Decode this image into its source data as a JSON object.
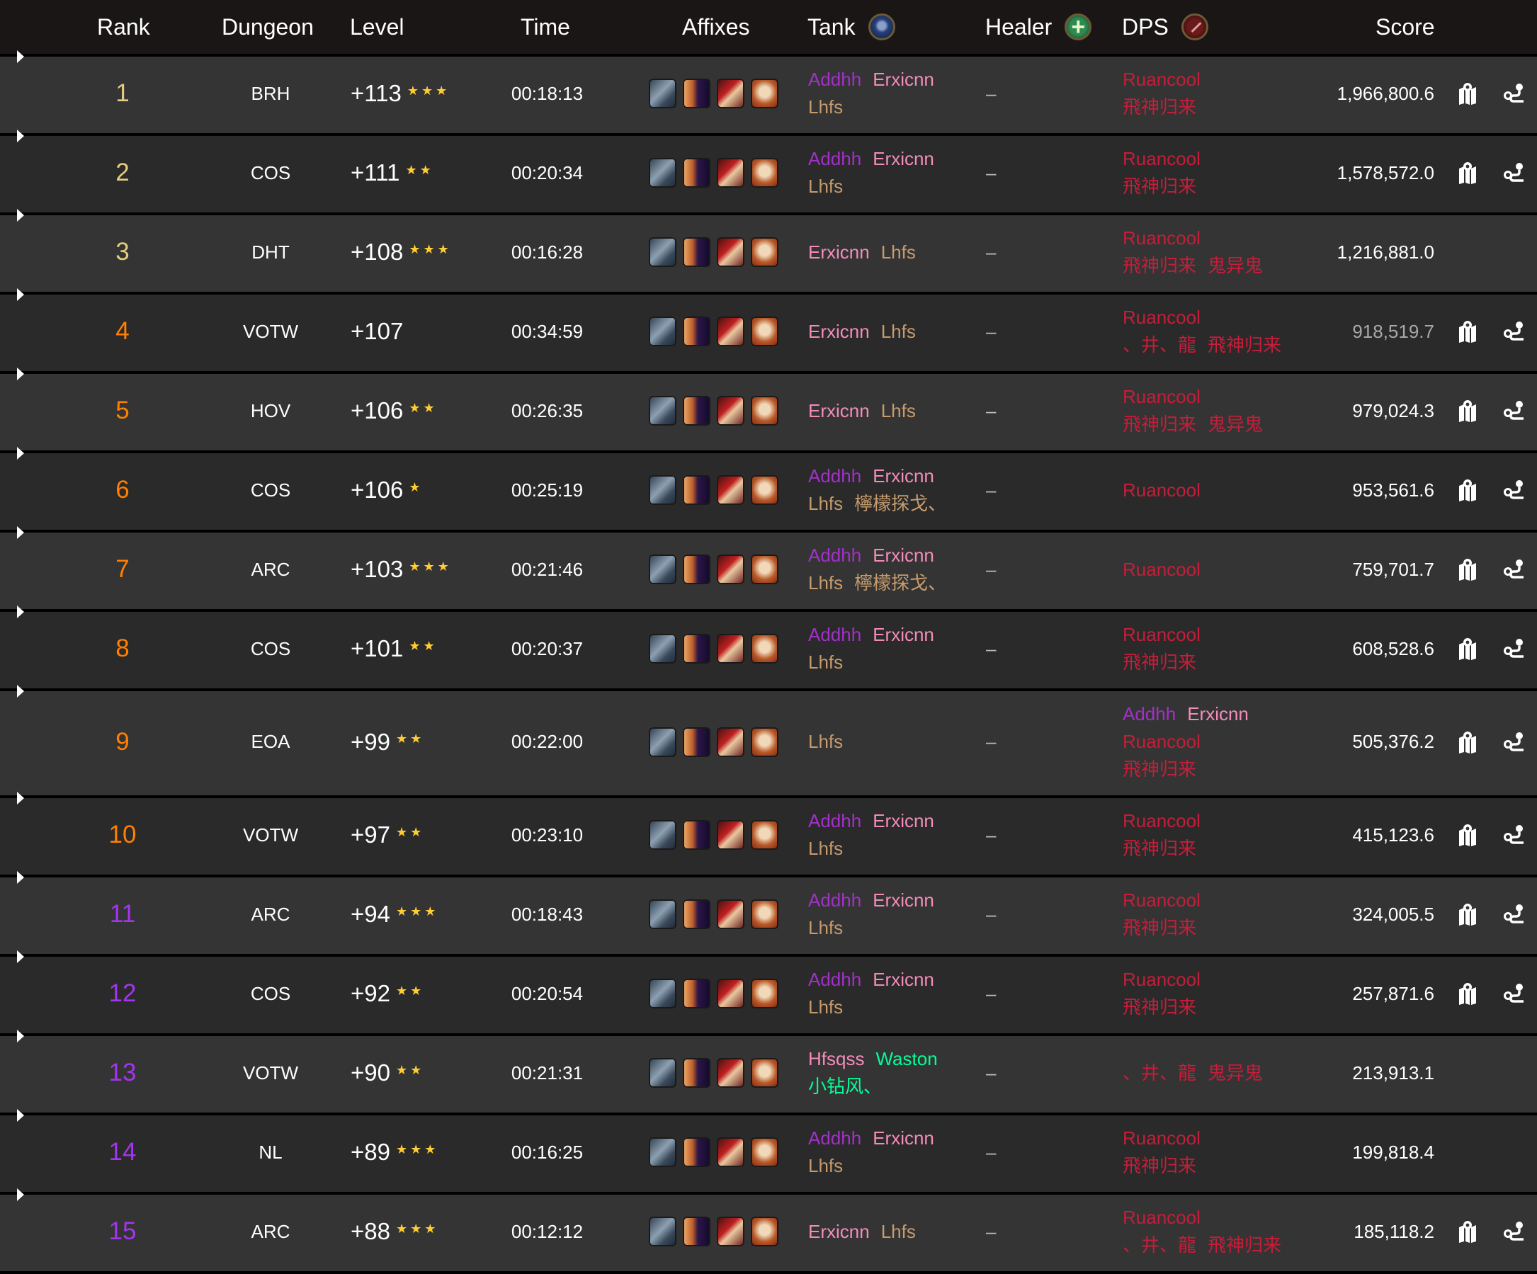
{
  "header": {
    "rank": "Rank",
    "dungeon": "Dungeon",
    "level": "Level",
    "time": "Time",
    "affixes": "Affixes",
    "tank": "Tank",
    "healer": "Healer",
    "dps": "DPS",
    "score": "Score",
    "tank_icon": "shield-icon",
    "healer_icon": "plus-icon",
    "dps_icon": "sword-icon"
  },
  "colors": {
    "rank_gold": "#e5cc80",
    "rank_orange": "#ff8000",
    "rank_purple": "#a335ee",
    "star": "#ffcc33",
    "row_odd": "#343434",
    "row_even": "#2a2a2a",
    "header_bg": "#191615"
  },
  "class_colors": {
    "demon_hunter": "#a330c9",
    "paladin": "#f48cba",
    "warrior": "#c69b6d",
    "death_knight": "#c41e3a",
    "monk": "#00ff98"
  },
  "affix_icons": [
    "tyrannical-icon",
    "bursting-icon",
    "bolstering-icon",
    "skull-affix-icon"
  ],
  "healer_empty": "–",
  "rows": [
    {
      "rank": "1",
      "tier": "gold",
      "dungeon": "BRH",
      "level": "+113",
      "stars": 3,
      "time": "00:18:13",
      "tank": [
        [
          [
            "Addhh",
            "demon_hunter"
          ],
          [
            "Erxicnn",
            "paladin"
          ]
        ],
        [
          [
            "Lhfs",
            "warrior"
          ]
        ]
      ],
      "dps": [
        [
          [
            "Ruancool",
            "death_knight"
          ]
        ],
        [
          [
            "飛神归来",
            "death_knight"
          ]
        ]
      ],
      "score": "1,966,800.6",
      "actions": true
    },
    {
      "rank": "2",
      "tier": "gold",
      "dungeon": "COS",
      "level": "+111",
      "stars": 2,
      "time": "00:20:34",
      "tank": [
        [
          [
            "Addhh",
            "demon_hunter"
          ],
          [
            "Erxicnn",
            "paladin"
          ]
        ],
        [
          [
            "Lhfs",
            "warrior"
          ]
        ]
      ],
      "dps": [
        [
          [
            "Ruancool",
            "death_knight"
          ]
        ],
        [
          [
            "飛神归来",
            "death_knight"
          ]
        ]
      ],
      "score": "1,578,572.0",
      "actions": true
    },
    {
      "rank": "3",
      "tier": "gold",
      "dungeon": "DHT",
      "level": "+108",
      "stars": 3,
      "time": "00:16:28",
      "tank": [
        [
          [
            "Erxicnn",
            "paladin"
          ],
          [
            "Lhfs",
            "warrior"
          ]
        ]
      ],
      "dps": [
        [
          [
            "Ruancool",
            "death_knight"
          ]
        ],
        [
          [
            "飛神归来",
            "death_knight"
          ],
          [
            "鬼异鬼",
            "death_knight"
          ]
        ]
      ],
      "score": "1,216,881.0",
      "actions": false
    },
    {
      "rank": "4",
      "tier": "orange",
      "dungeon": "VOTW",
      "level": "+107",
      "stars": 0,
      "time": "00:34:59",
      "tank": [
        [
          [
            "Erxicnn",
            "paladin"
          ],
          [
            "Lhfs",
            "warrior"
          ]
        ]
      ],
      "dps": [
        [
          [
            "Ruancool",
            "death_knight"
          ]
        ],
        [
          [
            "、井、龍",
            "death_knight"
          ],
          [
            "飛神归来",
            "death_knight"
          ]
        ]
      ],
      "score": "918,519.7",
      "score_muted": true,
      "actions": true
    },
    {
      "rank": "5",
      "tier": "orange",
      "dungeon": "HOV",
      "level": "+106",
      "stars": 2,
      "time": "00:26:35",
      "tank": [
        [
          [
            "Erxicnn",
            "paladin"
          ],
          [
            "Lhfs",
            "warrior"
          ]
        ]
      ],
      "dps": [
        [
          [
            "Ruancool",
            "death_knight"
          ]
        ],
        [
          [
            "飛神归来",
            "death_knight"
          ],
          [
            "鬼异鬼",
            "death_knight"
          ]
        ]
      ],
      "score": "979,024.3",
      "actions": true
    },
    {
      "rank": "6",
      "tier": "orange",
      "dungeon": "COS",
      "level": "+106",
      "stars": 1,
      "time": "00:25:19",
      "tank": [
        [
          [
            "Addhh",
            "demon_hunter"
          ],
          [
            "Erxicnn",
            "paladin"
          ]
        ],
        [
          [
            "Lhfs",
            "warrior"
          ],
          [
            "檸檬探戈、",
            "warrior"
          ]
        ]
      ],
      "dps": [
        [
          [
            "Ruancool",
            "death_knight"
          ]
        ]
      ],
      "score": "953,561.6",
      "actions": true
    },
    {
      "rank": "7",
      "tier": "orange",
      "dungeon": "ARC",
      "level": "+103",
      "stars": 3,
      "time": "00:21:46",
      "tank": [
        [
          [
            "Addhh",
            "demon_hunter"
          ],
          [
            "Erxicnn",
            "paladin"
          ]
        ],
        [
          [
            "Lhfs",
            "warrior"
          ],
          [
            "檸檬探戈、",
            "warrior"
          ]
        ]
      ],
      "dps": [
        [
          [
            "Ruancool",
            "death_knight"
          ]
        ]
      ],
      "score": "759,701.7",
      "actions": true
    },
    {
      "rank": "8",
      "tier": "orange",
      "dungeon": "COS",
      "level": "+101",
      "stars": 2,
      "time": "00:20:37",
      "tank": [
        [
          [
            "Addhh",
            "demon_hunter"
          ],
          [
            "Erxicnn",
            "paladin"
          ]
        ],
        [
          [
            "Lhfs",
            "warrior"
          ]
        ]
      ],
      "dps": [
        [
          [
            "Ruancool",
            "death_knight"
          ]
        ],
        [
          [
            "飛神归来",
            "death_knight"
          ]
        ]
      ],
      "score": "608,528.6",
      "actions": true
    },
    {
      "rank": "9",
      "tier": "orange",
      "dungeon": "EOA",
      "level": "+99",
      "stars": 2,
      "time": "00:22:00",
      "tank": [
        [
          [
            "Lhfs",
            "warrior"
          ]
        ]
      ],
      "dps": [
        [
          [
            "Addhh",
            "demon_hunter"
          ],
          [
            "Erxicnn",
            "paladin"
          ]
        ],
        [
          [
            "Ruancool",
            "death_knight"
          ]
        ],
        [
          [
            "飛神归来",
            "death_knight"
          ]
        ]
      ],
      "score": "505,376.2",
      "actions": true
    },
    {
      "rank": "10",
      "tier": "orange",
      "dungeon": "VOTW",
      "level": "+97",
      "stars": 2,
      "time": "00:23:10",
      "tank": [
        [
          [
            "Addhh",
            "demon_hunter"
          ],
          [
            "Erxicnn",
            "paladin"
          ]
        ],
        [
          [
            "Lhfs",
            "warrior"
          ]
        ]
      ],
      "dps": [
        [
          [
            "Ruancool",
            "death_knight"
          ]
        ],
        [
          [
            "飛神归来",
            "death_knight"
          ]
        ]
      ],
      "score": "415,123.6",
      "actions": true
    },
    {
      "rank": "11",
      "tier": "purple",
      "dungeon": "ARC",
      "level": "+94",
      "stars": 3,
      "time": "00:18:43",
      "tank": [
        [
          [
            "Addhh",
            "demon_hunter"
          ],
          [
            "Erxicnn",
            "paladin"
          ]
        ],
        [
          [
            "Lhfs",
            "warrior"
          ]
        ]
      ],
      "dps": [
        [
          [
            "Ruancool",
            "death_knight"
          ]
        ],
        [
          [
            "飛神归来",
            "death_knight"
          ]
        ]
      ],
      "score": "324,005.5",
      "actions": true
    },
    {
      "rank": "12",
      "tier": "purple",
      "dungeon": "COS",
      "level": "+92",
      "stars": 2,
      "time": "00:20:54",
      "tank": [
        [
          [
            "Addhh",
            "demon_hunter"
          ],
          [
            "Erxicnn",
            "paladin"
          ]
        ],
        [
          [
            "Lhfs",
            "warrior"
          ]
        ]
      ],
      "dps": [
        [
          [
            "Ruancool",
            "death_knight"
          ]
        ],
        [
          [
            "飛神归来",
            "death_knight"
          ]
        ]
      ],
      "score": "257,871.6",
      "actions": true
    },
    {
      "rank": "13",
      "tier": "purple",
      "dungeon": "VOTW",
      "level": "+90",
      "stars": 2,
      "time": "00:21:31",
      "tank": [
        [
          [
            "Hfsqss",
            "paladin"
          ],
          [
            "Waston",
            "monk"
          ]
        ],
        [
          [
            "小钻风、",
            "monk"
          ]
        ]
      ],
      "dps": [
        [
          [
            "、井、龍",
            "death_knight"
          ],
          [
            "鬼异鬼",
            "death_knight"
          ]
        ]
      ],
      "score": "213,913.1",
      "actions": false
    },
    {
      "rank": "14",
      "tier": "purple",
      "dungeon": "NL",
      "level": "+89",
      "stars": 3,
      "time": "00:16:25",
      "tank": [
        [
          [
            "Addhh",
            "demon_hunter"
          ],
          [
            "Erxicnn",
            "paladin"
          ]
        ],
        [
          [
            "Lhfs",
            "warrior"
          ]
        ]
      ],
      "dps": [
        [
          [
            "Ruancool",
            "death_knight"
          ]
        ],
        [
          [
            "飛神归来",
            "death_knight"
          ]
        ]
      ],
      "score": "199,818.4",
      "actions": false
    },
    {
      "rank": "15",
      "tier": "purple",
      "dungeon": "ARC",
      "level": "+88",
      "stars": 3,
      "time": "00:12:12",
      "tank": [
        [
          [
            "Erxicnn",
            "paladin"
          ],
          [
            "Lhfs",
            "warrior"
          ]
        ]
      ],
      "dps": [
        [
          [
            "Ruancool",
            "death_knight"
          ]
        ],
        [
          [
            "、井、龍",
            "death_knight"
          ],
          [
            "飛神归来",
            "death_knight"
          ]
        ]
      ],
      "score": "185,118.2",
      "actions": true
    }
  ]
}
